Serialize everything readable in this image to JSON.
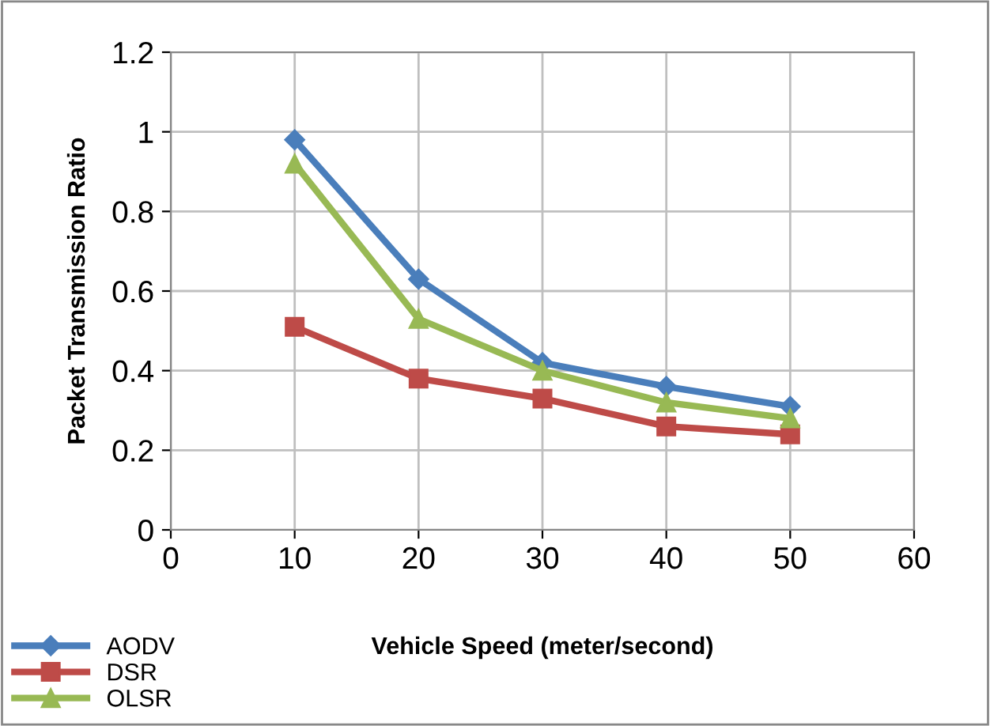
{
  "chart_data": {
    "type": "line",
    "xlabel": "Vehicle Speed (meter/second)",
    "ylabel": "Packet Transmission Ratio",
    "x": [
      10,
      20,
      30,
      40,
      50
    ],
    "series": [
      {
        "name": "AODV",
        "color": "#4a7ebb",
        "marker": "diamond",
        "values": [
          0.98,
          0.63,
          0.42,
          0.36,
          0.31
        ]
      },
      {
        "name": "DSR",
        "color": "#be4b48",
        "marker": "square",
        "values": [
          0.51,
          0.38,
          0.33,
          0.26,
          0.24
        ]
      },
      {
        "name": "OLSR",
        "color": "#98b954",
        "marker": "triangle",
        "values": [
          0.92,
          0.53,
          0.4,
          0.32,
          0.28
        ]
      }
    ],
    "xlim": [
      0,
      60
    ],
    "xticks": [
      0,
      10,
      20,
      30,
      40,
      50,
      60
    ],
    "ylim": [
      0,
      1.2
    ],
    "yticks": [
      0,
      0.2,
      0.4,
      0.6,
      0.8,
      1,
      1.2
    ],
    "grid": true,
    "legend": "bottom left",
    "line_style": "solid"
  }
}
